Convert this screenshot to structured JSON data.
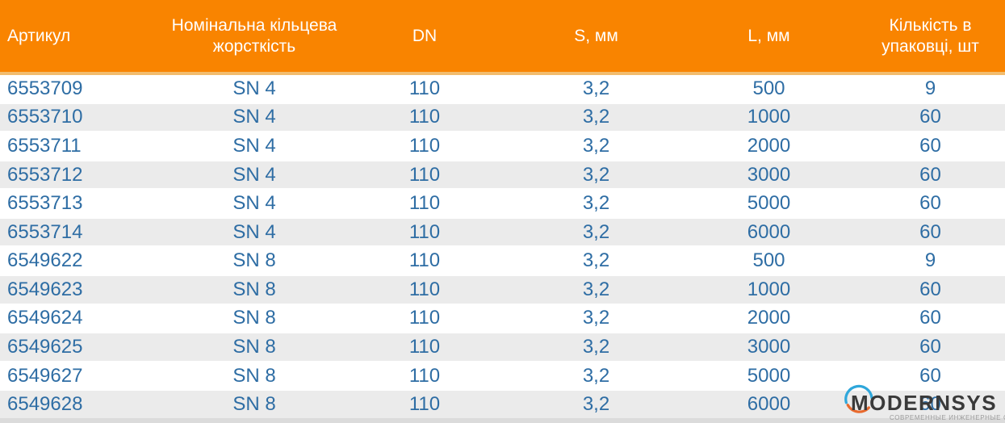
{
  "table": {
    "columns": [
      {
        "label": "Артикул"
      },
      {
        "label": "Номінальна кільцева жорсткість"
      },
      {
        "label": "DN"
      },
      {
        "label": "S, мм"
      },
      {
        "label": "L, мм"
      },
      {
        "label": "Кількість в упаковці, шт"
      }
    ],
    "rows": [
      [
        "6553709",
        "SN 4",
        "110",
        "3,2",
        "500",
        "9"
      ],
      [
        "6553710",
        "SN 4",
        "110",
        "3,2",
        "1000",
        "60"
      ],
      [
        "6553711",
        "SN 4",
        "110",
        "3,2",
        "2000",
        "60"
      ],
      [
        "6553712",
        "SN 4",
        "110",
        "3,2",
        "3000",
        "60"
      ],
      [
        "6553713",
        "SN 4",
        "110",
        "3,2",
        "5000",
        "60"
      ],
      [
        "6553714",
        "SN 4",
        "110",
        "3,2",
        "6000",
        "60"
      ],
      [
        "6549622",
        "SN 8",
        "110",
        "3,2",
        "500",
        "9"
      ],
      [
        "6549623",
        "SN 8",
        "110",
        "3,2",
        "1000",
        "60"
      ],
      [
        "6549624",
        "SN 8",
        "110",
        "3,2",
        "2000",
        "60"
      ],
      [
        "6549625",
        "SN 8",
        "110",
        "3,2",
        "3000",
        "60"
      ],
      [
        "6549627",
        "SN 8",
        "110",
        "3,2",
        "5000",
        "60"
      ],
      [
        "6549628",
        "SN 8",
        "110",
        "3,2",
        "6000",
        "60"
      ]
    ]
  },
  "logo": {
    "name": "MODERNSYS",
    "tagline": "СОВРЕМЕННЫЕ ИНЖЕНЕРНЫЕ СИСТЕМЫ"
  },
  "colors": {
    "header_bg": "#F98400",
    "header_border": "#F2BC6E",
    "header_text": "#FFFFFF",
    "row_alt_bg": "#EBEBEB",
    "data_text": "#2E6DA4",
    "bottom_strip": "#DBDBDB",
    "logo_blue_arc": "#2FA7DB",
    "logo_orange_arc": "#E96A2E",
    "logo_text": "#3A3A3A",
    "logo_tagline": "#9B9B9B"
  }
}
